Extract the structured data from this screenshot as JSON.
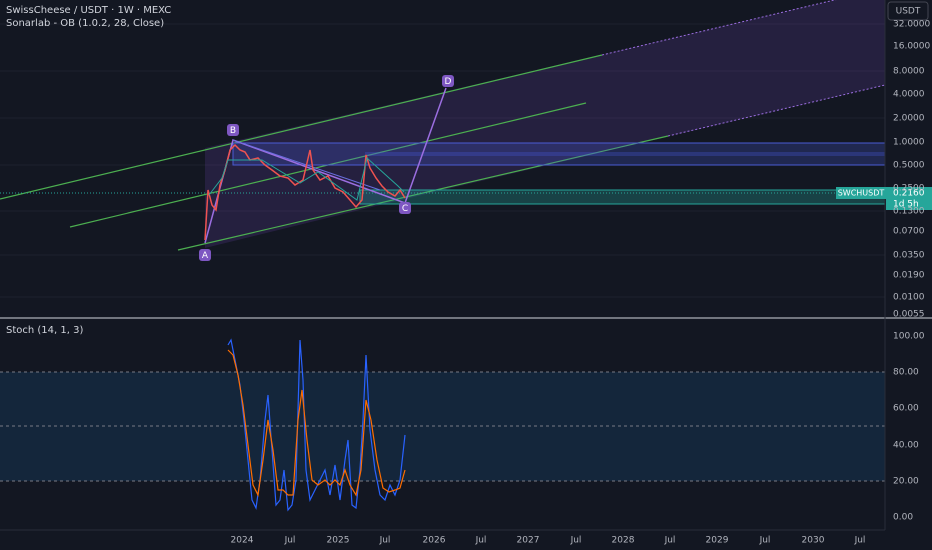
{
  "header": {
    "symbol": "SwissCheese / USDT · 1W · MEXC",
    "indicator": "Sonarlab - OB (1.0.2, 28, Close)",
    "currency": "USDT"
  },
  "price_axis": [
    "32.0000",
    "16.0000",
    "8.0000",
    "4.0000",
    "2.0000",
    "1.0000",
    "0.5000",
    "0.2500",
    "0.1300",
    "0.0700",
    "0.0350",
    "0.0190",
    "0.0100",
    "0.0055"
  ],
  "price_tag": {
    "symbol": "SWCHUSDT",
    "price": "0.2160",
    "countdown": "1d 5h"
  },
  "points": [
    "A",
    "B",
    "C",
    "D"
  ],
  "stoch": {
    "title": "Stoch (14, 1, 3)",
    "axis": [
      "100.00",
      "80.00",
      "60.00",
      "40.00",
      "20.00",
      "0.00"
    ]
  },
  "time_axis": [
    "2024",
    "Jul",
    "2025",
    "Jul",
    "2026",
    "Jul",
    "2027",
    "Jul",
    "2028",
    "Jul",
    "2029",
    "Jul",
    "2030",
    "Jul"
  ]
}
